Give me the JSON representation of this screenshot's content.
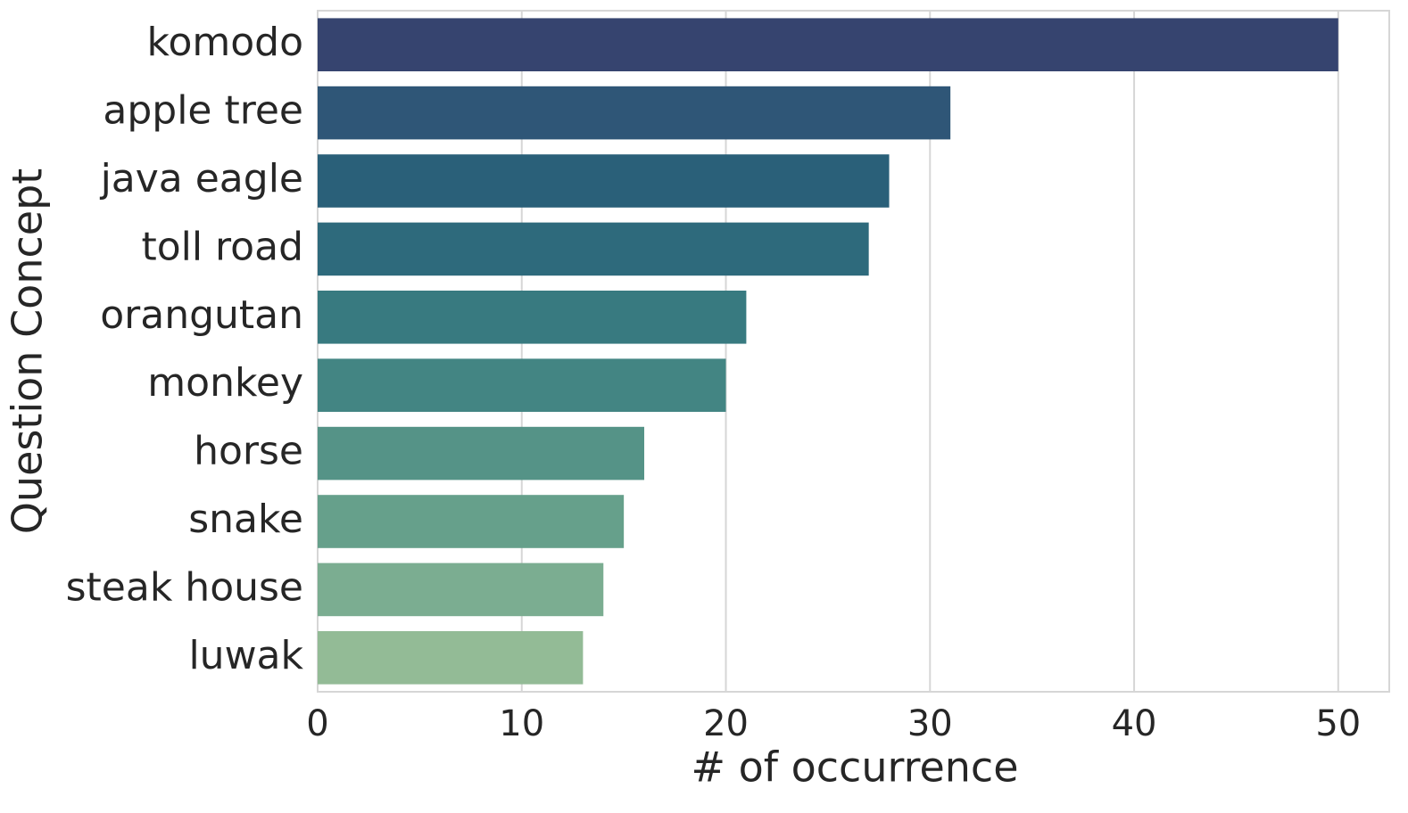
{
  "chart_data": {
    "type": "barh",
    "xlabel": "# of occurrence",
    "ylabel": "Question Concept",
    "categories": [
      "komodo",
      "apple tree",
      "java eagle",
      "toll road",
      "orangutan",
      "monkey",
      "horse",
      "snake",
      "steak house",
      "luwak"
    ],
    "values": [
      50,
      31,
      28,
      27,
      21,
      20,
      16,
      15,
      14,
      13
    ],
    "colors": [
      "#36446f",
      "#2f5677",
      "#2a6079",
      "#2e6a7c",
      "#387a80",
      "#438583",
      "#559387",
      "#66a08b",
      "#7bad91",
      "#93bb96"
    ],
    "xlim": [
      0,
      52.5
    ],
    "xticks": [
      0,
      10,
      20,
      30,
      40,
      50
    ],
    "grid": true
  }
}
